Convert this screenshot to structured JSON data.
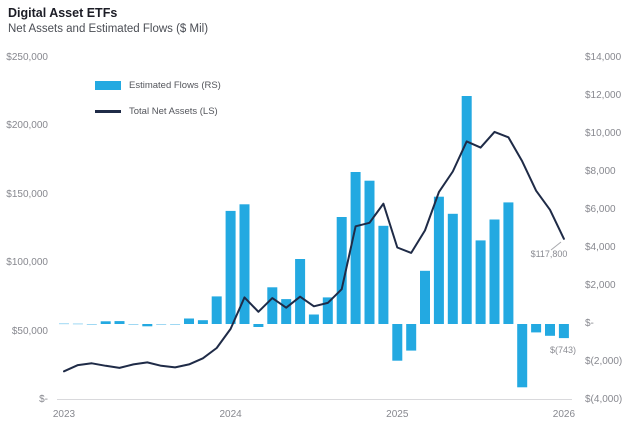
{
  "chart_data": {
    "type": "bar",
    "title": "Digital Asset ETFs",
    "subtitle": "Net Assets and Estimated Flows ($ Mil)",
    "grid": false,
    "legend_position": "top-left-inside",
    "x": [
      "Jan 2023",
      "Feb 2023",
      "Mar 2023",
      "Apr 2023",
      "May 2023",
      "Jun 2023",
      "Jul 2023",
      "Aug 2023",
      "Sep 2023",
      "Oct 2023",
      "Nov 2023",
      "Dec 2023",
      "Jan 2024",
      "Feb 2024",
      "Mar 2024",
      "Apr 2024",
      "May 2024",
      "Jun 2024",
      "Jul 2024",
      "Aug 2024",
      "Sep 2024",
      "Oct 2024",
      "Nov 2024",
      "Dec 2024",
      "Jan 2025",
      "Feb 2025",
      "Mar 2025",
      "Apr 2025",
      "May 2025",
      "Jun 2025",
      "Jul 2025",
      "Aug 2025",
      "Sep 2025",
      "Oct 2025",
      "Nov 2025",
      "Dec 2025",
      "Jan 2026"
    ],
    "x_tick_labels": [
      "2023",
      "2024",
      "2025",
      "2026"
    ],
    "x_tick_month_index": [
      0,
      12,
      24,
      36
    ],
    "left_axis": {
      "range": [
        0,
        250000
      ],
      "tick_values": [
        0,
        50000,
        100000,
        150000,
        200000,
        250000
      ],
      "tick_labels": [
        "$-",
        "$50,000",
        "$100,000",
        "$150,000",
        "$200,000",
        "$250,000"
      ]
    },
    "right_axis": {
      "range": [
        -4000,
        14000
      ],
      "tick_values": [
        -4000,
        -2000,
        0,
        2000,
        4000,
        6000,
        8000,
        10000,
        12000,
        14000
      ],
      "tick_labels": [
        "$(4,000)",
        "$(2,000)",
        "$-",
        "$2,000",
        "$4,000",
        "$6,000",
        "$8,000",
        "$10,000",
        "$12,000",
        "$14,000"
      ]
    },
    "series": [
      {
        "name": "Estimated Flows (RS)",
        "type": "bar",
        "axis": "right",
        "color": "#23a9e1",
        "tiny_bar_color": "#9fd8f3",
        "values": [
          40,
          30,
          -25,
          140,
          150,
          -45,
          -120,
          -55,
          -35,
          290,
          200,
          1450,
          5950,
          6300,
          -160,
          1930,
          1310,
          3420,
          500,
          1400,
          5630,
          8000,
          7540,
          5170,
          -1930,
          -1400,
          2800,
          6700,
          5800,
          12000,
          4400,
          5500,
          6400,
          -3330,
          -440,
          -620,
          -743
        ]
      },
      {
        "name": "Total Net Assets (LS)",
        "type": "line",
        "axis": "left",
        "color": "#1f2b47",
        "values": [
          21000,
          25500,
          26800,
          25000,
          23500,
          26000,
          27500,
          25000,
          23800,
          26000,
          30500,
          38000,
          52000,
          75000,
          64500,
          74500,
          67500,
          75500,
          68500,
          71000,
          81000,
          127000,
          129500,
          143500,
          111500,
          107500,
          124000,
          152000,
          167000,
          189000,
          184500,
          196000,
          192000,
          174500,
          153000,
          139000,
          117800
        ]
      }
    ],
    "annotations": [
      {
        "text": "$117,800"
      },
      {
        "text": "$(743)"
      }
    ],
    "axis_line_color": "#d9d9dc",
    "annotation_color": "#8a8b92"
  }
}
